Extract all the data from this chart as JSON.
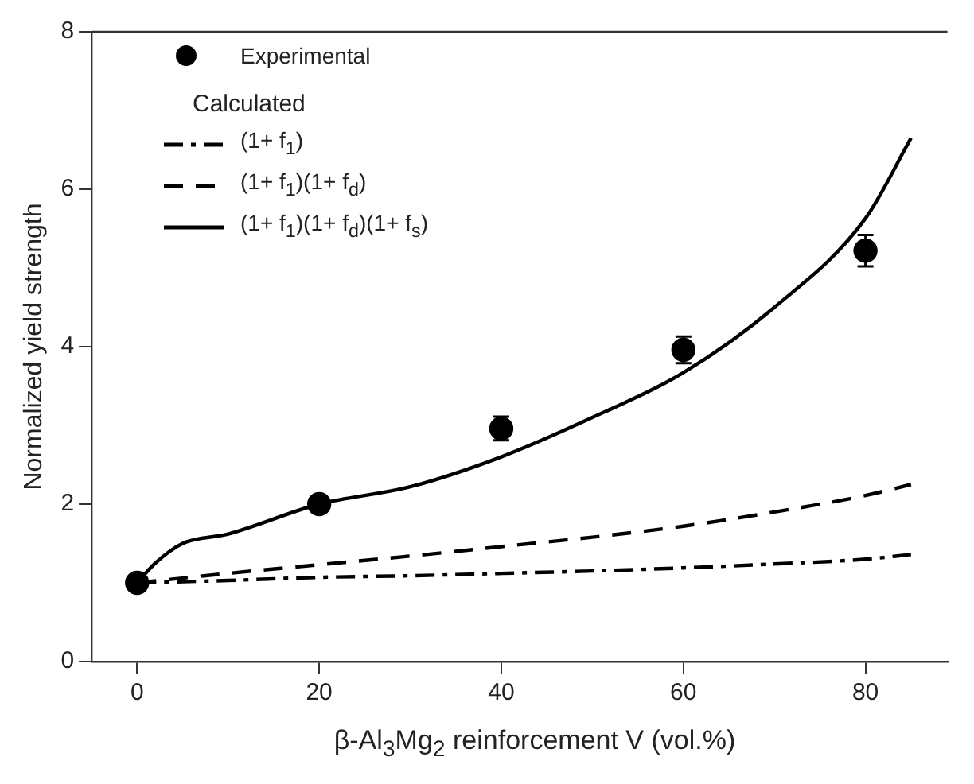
{
  "chart_data": {
    "type": "line",
    "xlabel": "β-Al$_{3}$Mg$_{2}$ reinforcement V (vol.%)",
    "ylabel": "Normalized yield strength",
    "legend_title": "Calculated",
    "legend": "top left",
    "grid": false,
    "xlim": [
      -5,
      89
    ],
    "xticks": [
      0,
      20,
      40,
      60,
      80
    ],
    "ylim": [
      0,
      8
    ],
    "yticks": [
      0,
      2,
      4,
      6,
      8
    ],
    "series": [
      {
        "name": "Experimental",
        "type": "scatter",
        "marker": "circle",
        "color": "#000000",
        "x": [
          0,
          20,
          40,
          60,
          80
        ],
        "values": [
          1.0,
          2.0,
          2.96,
          3.96,
          5.22
        ],
        "errors": [
          null,
          0.1,
          0.15,
          0.17,
          0.2
        ]
      },
      {
        "name": "(1+ f$_{1}$)",
        "type": "line",
        "marker": "none",
        "line_style": "dashdot",
        "color": "#000000",
        "x": [
          0,
          10,
          20,
          30,
          40,
          50,
          60,
          70,
          80,
          85
        ],
        "values": [
          1.0,
          1.03,
          1.07,
          1.09,
          1.12,
          1.15,
          1.19,
          1.24,
          1.3,
          1.36
        ]
      },
      {
        "name": "(1+ f$_{1}$)(1+ f$_{d}$)",
        "type": "line",
        "marker": "none",
        "line_style": "dashed",
        "color": "#000000",
        "x": [
          0,
          10,
          20,
          30,
          40,
          50,
          60,
          70,
          80,
          85
        ],
        "values": [
          1.0,
          1.12,
          1.23,
          1.34,
          1.46,
          1.58,
          1.72,
          1.9,
          2.11,
          2.25
        ]
      },
      {
        "name": "(1+ f$_{1}$)(1+ f$_{d}$)(1+ f$_{s}$)",
        "type": "line",
        "marker": "none",
        "line_style": "solid",
        "color": "#000000",
        "x": [
          0,
          2,
          5,
          10,
          20,
          30,
          40,
          50,
          60,
          70,
          80,
          85
        ],
        "values": [
          1.0,
          1.25,
          1.5,
          1.62,
          2.0,
          2.22,
          2.6,
          3.1,
          3.67,
          4.5,
          5.63,
          6.65
        ]
      }
    ]
  }
}
